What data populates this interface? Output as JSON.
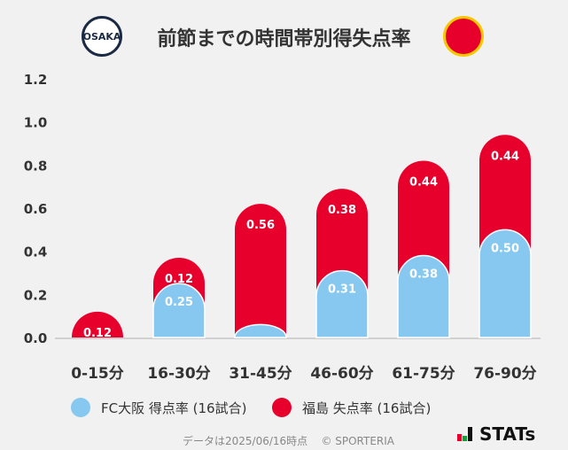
{
  "title": "前節までの時間帯別得失点率",
  "logos": {
    "left": "FC OSAKA",
    "right": "FUKUSHIMA UNITED"
  },
  "chart_data": {
    "type": "bar",
    "stacked": true,
    "title": "前節までの時間帯別得失点率",
    "categories": [
      "0-15分",
      "16-30分",
      "31-45分",
      "46-60分",
      "61-75分",
      "76-90分"
    ],
    "series": [
      {
        "name": "FC大阪 得点率 (16試合)",
        "color": "#86c8ef",
        "values": [
          0,
          0.25,
          0.06,
          0.31,
          0.38,
          0.5
        ],
        "labels": [
          "",
          "0.25",
          "",
          "0.31",
          "0.38",
          "0.50"
        ]
      },
      {
        "name": "福島 失点率 (16試合)",
        "color": "#e8002d",
        "values": [
          0.12,
          0.12,
          0.56,
          0.38,
          0.44,
          0.44
        ],
        "labels": [
          "0.12",
          "0.12",
          "0.56",
          "0.38",
          "0.44",
          "0.44"
        ]
      }
    ],
    "ylim": [
      0,
      1.2
    ],
    "yticks": [
      "0.0",
      "0.2",
      "0.4",
      "0.6",
      "0.8",
      "1.0",
      "1.2"
    ],
    "legend": "bottom",
    "grid": false
  },
  "footer": {
    "note": "データは2025/06/16時点",
    "copyright": "© SPORTERIA"
  },
  "brand": "STATs"
}
